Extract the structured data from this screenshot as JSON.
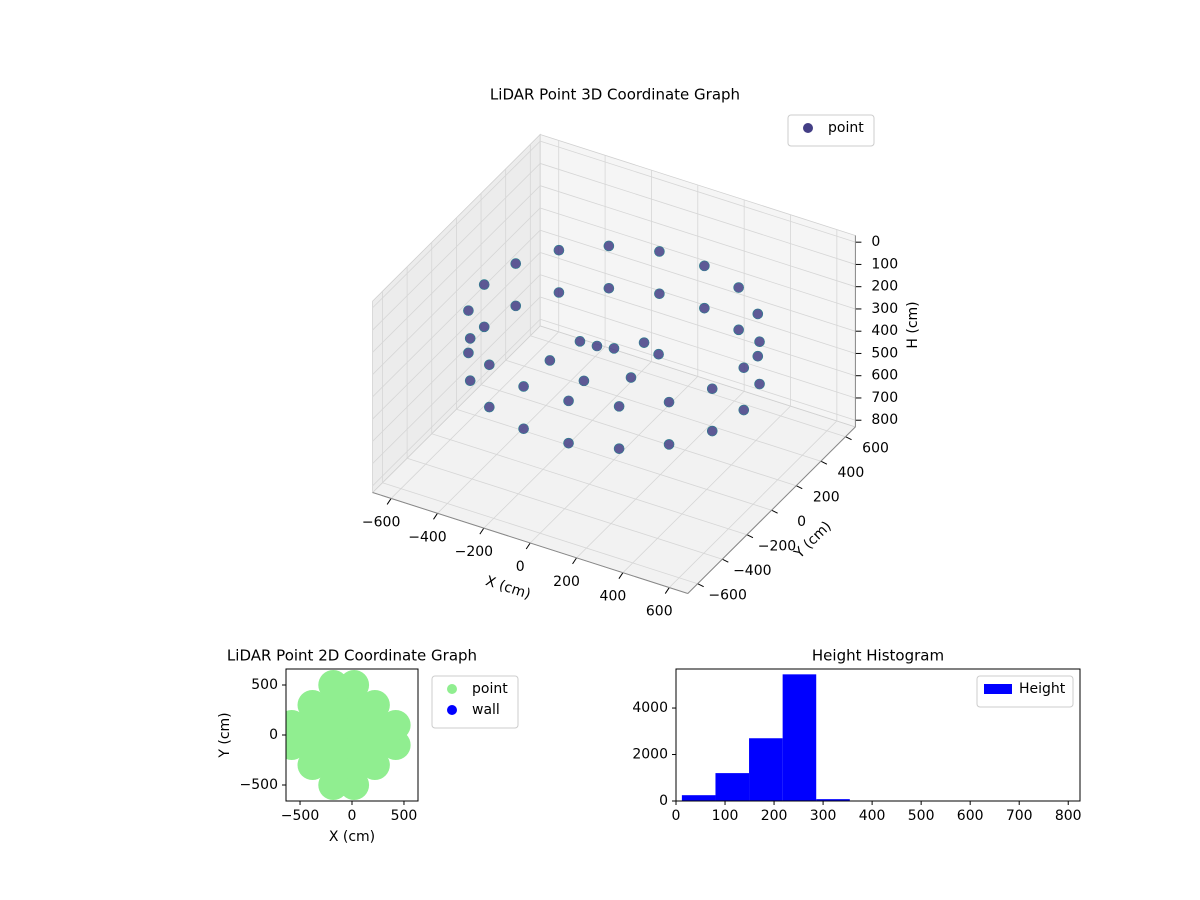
{
  "chart_data": [
    {
      "type": "scatter3d",
      "title": "LiDAR Point 3D Coordinate Graph",
      "xlabel": "X (cm)",
      "ylabel": "Y (cm)",
      "zlabel": "H (cm)",
      "xlim": [
        -680,
        680
      ],
      "ylim": [
        -680,
        680
      ],
      "zlim": [
        -30,
        830
      ],
      "z_inverted": true,
      "xticks": [
        {
          "value": -600,
          "label": "−600"
        },
        {
          "value": -400,
          "label": "−400"
        },
        {
          "value": -200,
          "label": "−200"
        },
        0,
        200,
        400,
        600
      ],
      "yticks": [
        {
          "value": -600,
          "label": "−600"
        },
        {
          "value": -400,
          "label": "−400"
        },
        {
          "value": -200,
          "label": "−200"
        },
        0,
        200,
        400,
        600
      ],
      "zticks": [
        0,
        100,
        200,
        300,
        400,
        500,
        600,
        700,
        800
      ],
      "grid": true,
      "legend": "upper right",
      "series": [
        {
          "name": "point",
          "color": "#433e85",
          "x": [
            560,
            526,
            429,
            280,
            97,
            -97,
            -280,
            -429,
            -526,
            -560,
            -526,
            -429,
            -280,
            -97,
            97,
            280,
            429,
            526,
            560,
            526,
            429,
            280,
            97,
            -97,
            -280,
            -429,
            -526,
            -560,
            -526,
            -429,
            -280,
            -97,
            97,
            280,
            429,
            526,
            -100,
            0,
            100,
            -200,
            50,
            -50,
            150,
            -250
          ],
          "y": [
            0,
            192,
            360,
            485,
            551,
            551,
            485,
            360,
            192,
            0,
            -192,
            -360,
            -485,
            -551,
            -551,
            -485,
            -360,
            -192,
            0,
            192,
            360,
            485,
            551,
            551,
            485,
            360,
            192,
            0,
            -192,
            -360,
            -485,
            -551,
            -551,
            -485,
            -360,
            -192,
            50,
            0,
            -50,
            100,
            150,
            -150,
            80,
            -50
          ],
          "z": [
            230,
            230,
            230,
            230,
            230,
            230,
            230,
            230,
            230,
            230,
            230,
            230,
            230,
            230,
            230,
            230,
            230,
            230,
            420,
            420,
            420,
            420,
            420,
            420,
            420,
            420,
            420,
            420,
            420,
            420,
            420,
            420,
            420,
            420,
            420,
            420,
            380,
            330,
            400,
            420,
            370,
            410,
            350,
            440
          ]
        }
      ]
    },
    {
      "type": "scatter",
      "title": "LiDAR Point 2D Coordinate Graph",
      "xlabel": "X (cm)",
      "ylabel": "Y (cm)",
      "xlim": [
        -635,
        635
      ],
      "ylim": [
        -660,
        660
      ],
      "xticks": [
        {
          "value": -500,
          "label": "−500"
        },
        0,
        500
      ],
      "yticks": [
        {
          "value": -500,
          "label": "−500"
        },
        0,
        500
      ],
      "legend": "outside right",
      "series": [
        {
          "name": "point",
          "color": "#90ee90",
          "x": [
            -580,
            -580,
            -380,
            -380,
            -380,
            -380,
            -180,
            -180,
            -180,
            -180,
            -180,
            -180,
            20,
            20,
            20,
            20,
            20,
            20,
            220,
            220,
            220,
            220,
            420,
            420
          ],
          "values": [
            -100,
            100,
            -300,
            -100,
            100,
            300,
            -500,
            -300,
            -100,
            100,
            300,
            500,
            -500,
            -300,
            -100,
            100,
            300,
            500,
            -300,
            -100,
            100,
            300,
            -100,
            100
          ]
        },
        {
          "name": "wall",
          "color": "#0000ff",
          "x": [],
          "values": []
        }
      ]
    },
    {
      "type": "histogram",
      "title": "Height Histogram",
      "xlim": [
        0,
        824
      ],
      "ylim": [
        0,
        5680
      ],
      "xticks": [
        0,
        100,
        200,
        300,
        400,
        500,
        600,
        700,
        800
      ],
      "yticks": [
        0,
        2000,
        4000
      ],
      "legend": "upper right",
      "bins": [
        12,
        80.5,
        149,
        217.5,
        286,
        354.5,
        423,
        491.5,
        560,
        628.5,
        697,
        765.5
      ],
      "series": [
        {
          "name": "Height",
          "color": "#0000ff",
          "values": [
            250,
            1200,
            2700,
            5450,
            80,
            5,
            2,
            1,
            1,
            1,
            1
          ]
        }
      ]
    }
  ]
}
